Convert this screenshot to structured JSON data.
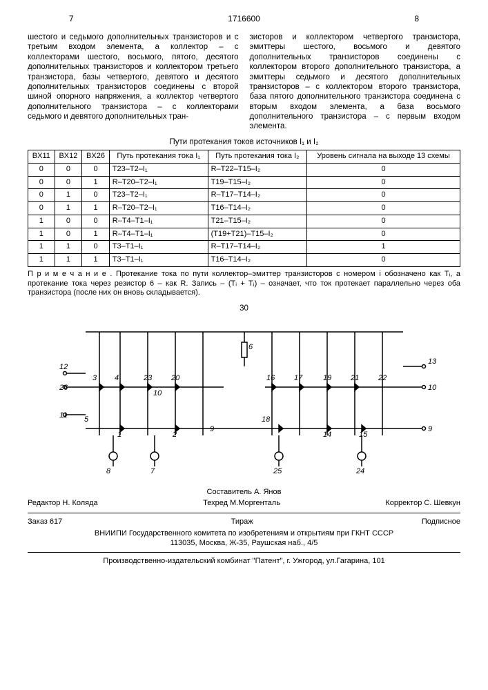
{
  "header": {
    "leftPage": "7",
    "docnum": "1716600",
    "rightPage": "8"
  },
  "colLeft": "шестого и седьмого дополнительных транзисторов и с третьим входом элемента, а коллектор – с коллекторами шестого, восьмого, пятого, десятого дополнительных транзисторов и коллектором третьего транзистора, базы четвертого, девятого и десятого дополнительных транзисторов соединены с второй шиной опорного напряжения, а коллектор четвертого дополнительного транзистора – с коллекторами седьмого и девятого дополнительных тран-",
  "colRight": "зисторов и коллектором четвертого транзистора, эмиттеры шестого, восьмого и девятого дополнительных транзисторов соединены с коллектором второго дополнительного транзистора, а эмиттеры седьмого и десятого дополнительных транзисторов – с коллектором второго транзистора, база пятого дополнительного транзистора соединена с вторым входом элемента, а база восьмого дополнительного транзистора – с первым входом элемента.",
  "marginNums": [
    "5",
    "10"
  ],
  "tableCaption": "Пути протекания токов источников I₁ и I₂",
  "tableHeaders": [
    "BX11",
    "BX12",
    "BX26",
    "Путь протекания тока I₁",
    "Путь протекания тока I₂",
    "Уровень сигнала на выходе 13 схемы"
  ],
  "tableRows": [
    [
      "0",
      "0",
      "0",
      "T23–T2–I₁",
      "R–T22–T15–I₂",
      "0"
    ],
    [
      "0",
      "0",
      "1",
      "R–T20–T2–I₁",
      "T19–T15–I₂",
      "0"
    ],
    [
      "0",
      "1",
      "0",
      "T23–T2–I₁",
      "R–T17–T14–I₂",
      "0"
    ],
    [
      "0",
      "1",
      "1",
      "R–T20–T2–I₁",
      "T16–T14–I₂",
      "0"
    ],
    [
      "1",
      "0",
      "0",
      "R–T4–T1–I₁",
      "T21–T15–I₂",
      "0"
    ],
    [
      "1",
      "0",
      "1",
      "R–T4–T1–I₁",
      "(T19+T21)–T15–I₂",
      "0"
    ],
    [
      "1",
      "1",
      "0",
      "T3–T1–I₁",
      "R–T17–T14–I₂",
      "1"
    ],
    [
      "1",
      "1",
      "1",
      "T3–T1–I₁",
      "T16–T14–I₂",
      "0"
    ]
  ],
  "note": "П р и м е ч а н и е . Протекание тока по пути коллектор–эмиттер транзисторов с номером i обозначено как Tᵢ, а протекание тока через резистор 6 – как R. Запись – (Tᵢ + Tⱼ) – означает, что ток протекает параллельно через оба транзистора (после них он вновь складывается).",
  "num30": "30",
  "diagram": {
    "nodes": [
      12,
      3,
      4,
      23,
      20,
      6,
      16,
      17,
      19,
      21,
      22,
      13,
      26,
      10,
      10,
      11,
      5,
      1,
      2,
      9,
      18,
      14,
      15,
      9,
      8,
      7,
      25,
      24
    ]
  },
  "footer": {
    "compiler": "Составитель А. Янов",
    "editor": "Редактор Н. Коляда",
    "tech": "Техред М.Моргенталь",
    "corrector": "Корректор С. Шевкун",
    "order": "Заказ 617",
    "tirazh": "Тираж",
    "sub": "Подписное",
    "org": "ВНИИПИ Государственного комитета по изобретениям и открытиям при ГКНТ СССР",
    "addr": "113035, Москва, Ж-35, Раушская наб., 4/5",
    "prod": "Производственно-издательский комбинат \"Патент\", г. Ужгород, ул.Гагарина, 101"
  }
}
